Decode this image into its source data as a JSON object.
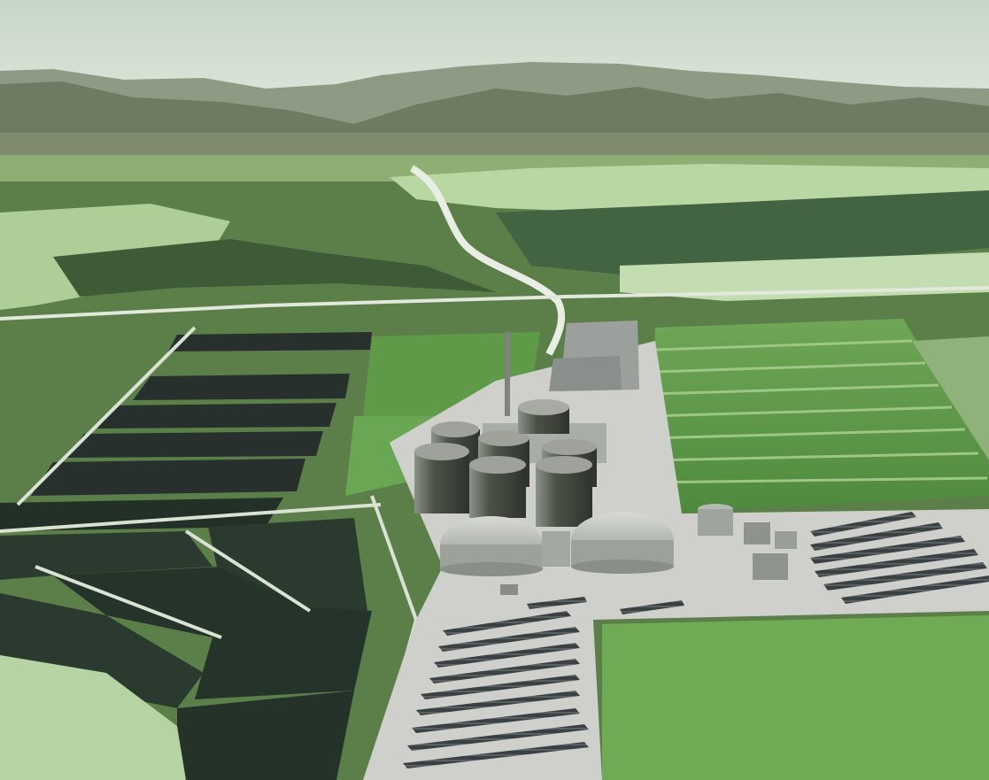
{
  "image": {
    "subject": "aerial-render-industrial-plant",
    "colors": {
      "sky": "#c9d8cc",
      "mountains_far": "#8f9a86",
      "mountains_near": "#6f7d63",
      "field_light": "#b9d3a8",
      "field_green": "#5e9a48",
      "field_dark": "#2f3b34",
      "pond": "#1e2a26",
      "road": "#e7ece3",
      "concrete": "#cfd0cc",
      "tank": "#5d6357",
      "tank_top": "#9ea29a",
      "dome": "#b7bbb6",
      "building": "#8e9390",
      "solar": "#3f4446"
    }
  }
}
